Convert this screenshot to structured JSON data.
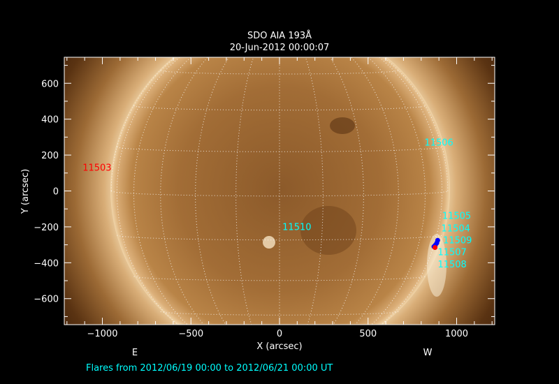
{
  "chart_data": {
    "type": "image",
    "title": "SDO AIA 193Å",
    "subtitle": "20-Jun-2012 00:00:07",
    "xlabel": "X (arcsec)",
    "ylabel": "Y (arcsec)",
    "xlim": [
      -1215,
      1215
    ],
    "ylim": [
      -745,
      745
    ],
    "xticks": [
      -1000,
      -500,
      0,
      500,
      1000
    ],
    "xtick_labels": [
      "−1000",
      "−500",
      "0",
      "500",
      "1000"
    ],
    "yticks": [
      -600,
      -400,
      -200,
      0,
      200,
      400,
      600
    ],
    "ytick_labels": [
      "−600",
      "−400",
      "−200",
      "0",
      "200",
      "400",
      "600"
    ],
    "solar_radius_arcsec": 950,
    "grid": "heliographic, 15° spacing, dotted white",
    "colormap": "SDO AIA 193 (brown/gold)",
    "active_regions": [
      {
        "label": "11503",
        "x": -1030,
        "y": 132,
        "color": "#ff0000"
      },
      {
        "label": "11506",
        "x": 900,
        "y": 272,
        "color": "#00ffff"
      },
      {
        "label": "11505",
        "x": 1000,
        "y": -136,
        "color": "#00ffff"
      },
      {
        "label": "11504",
        "x": 995,
        "y": -190,
        "color": "#00ffff"
      },
      {
        "label": "11509",
        "x": 1005,
        "y": -190,
        "color": "#00ffff"
      },
      {
        "label": "11510",
        "x": 98,
        "y": -199,
        "color": "#00ffff"
      },
      {
        "label": "11507",
        "x": 975,
        "y": -335,
        "color": "#00ffff"
      },
      {
        "label": "11508",
        "x": 975,
        "y": -360,
        "color": "#00ffff"
      }
    ],
    "flares": [
      {
        "x": 893,
        "y": -275,
        "color": "#0000ff"
      },
      {
        "x": 888,
        "y": -290,
        "color": "#0000ff"
      },
      {
        "x": 880,
        "y": -302,
        "color": "#0000ff"
      },
      {
        "x": 872,
        "y": -310,
        "color": "#0000ff"
      },
      {
        "x": 878,
        "y": -315,
        "color": "#ff0000"
      }
    ],
    "east_label": "E",
    "west_label": "W",
    "footer": "Flares from 2012/06/19 00:00 to 2012/06/21 00:00 UT"
  }
}
